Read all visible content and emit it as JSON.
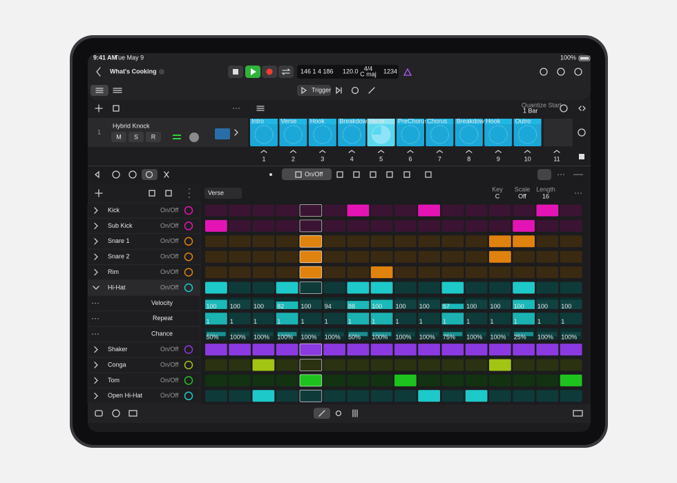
{
  "status_bar": {
    "time": "9:41 AM",
    "date": "Tue May 9",
    "battery": "100%"
  },
  "header": {
    "project_title": "What's Cooking",
    "lcd": {
      "position": "146 1 4 186",
      "tempo": "120.0",
      "signature": "4/4",
      "key": "C maj"
    },
    "count_in": "1234"
  },
  "toolbar": {
    "trigger": "Trigger"
  },
  "quantize": {
    "label": "Quantize Start",
    "value": "1 Bar"
  },
  "track": {
    "number": "1",
    "name": "Hybrid Knock",
    "buttons": [
      "M",
      "S",
      "R"
    ]
  },
  "cells": [
    "Intro",
    "Verse",
    "Hook",
    "Breakdown",
    "Verse",
    "PreChorus",
    "Chorus",
    "Breakdown",
    "Hook",
    "Outro"
  ],
  "selected_cell": 4,
  "scene_numbers": [
    "1",
    "2",
    "3",
    "4",
    "5",
    "6",
    "7",
    "8",
    "9",
    "10",
    "11"
  ],
  "step_toolbar": {
    "on_off": "On/Off"
  },
  "pattern": {
    "name": "Verse",
    "key_label": "Key",
    "key": "C",
    "scale_label": "Scale",
    "scale": "Off",
    "length_label": "Length",
    "length": "16",
    "playhead_step": 4
  },
  "rows": [
    {
      "name": "Kick",
      "toggle": "On/Off",
      "color": "#e414b4",
      "dim": "#3a1432",
      "steps": [
        0,
        0,
        0,
        0,
        0,
        0,
        1,
        0,
        0,
        1,
        0,
        0,
        0,
        0,
        1,
        0
      ]
    },
    {
      "name": "Sub Kick",
      "toggle": "On/Off",
      "color": "#e414b4",
      "dim": "#3a1432",
      "steps": [
        1,
        0,
        0,
        0,
        0,
        0,
        0,
        0,
        0,
        0,
        0,
        0,
        0,
        1,
        0,
        0
      ]
    },
    {
      "name": "Snare 1",
      "toggle": "On/Off",
      "color": "#e0820e",
      "dim": "#3a2a12",
      "steps": [
        0,
        0,
        0,
        0,
        1,
        0,
        0,
        0,
        0,
        0,
        0,
        0,
        1,
        1,
        0,
        0
      ]
    },
    {
      "name": "Snare 2",
      "toggle": "On/Off",
      "color": "#e0820e",
      "dim": "#3a2a12",
      "steps": [
        0,
        0,
        0,
        0,
        1,
        0,
        0,
        0,
        0,
        0,
        0,
        0,
        1,
        0,
        0,
        0
      ]
    },
    {
      "name": "Rim",
      "toggle": "On/Off",
      "color": "#e0820e",
      "dim": "#3a2a12",
      "steps": [
        0,
        0,
        0,
        0,
        1,
        0,
        0,
        1,
        0,
        0,
        0,
        0,
        0,
        0,
        0,
        0
      ]
    },
    {
      "name": "Hi-Hat",
      "toggle": "On/Off",
      "color": "#1ec9c9",
      "dim": "#0e3a3a",
      "steps": [
        1,
        0,
        0,
        1,
        0,
        0,
        1,
        1,
        0,
        0,
        1,
        0,
        0,
        1,
        0,
        0
      ]
    },
    {
      "name": "Shaker",
      "toggle": "On/Off",
      "color": "#8a3ae0",
      "dim": "#2e1650",
      "steps": [
        1,
        1,
        1,
        1,
        1,
        1,
        1,
        1,
        1,
        1,
        1,
        1,
        1,
        1,
        1,
        1
      ]
    },
    {
      "name": "Conga",
      "toggle": "On/Off",
      "color": "#a2c412",
      "dim": "#2a3212",
      "steps": [
        0,
        0,
        1,
        0,
        0,
        0,
        0,
        0,
        0,
        0,
        0,
        0,
        1,
        0,
        0,
        0
      ]
    },
    {
      "name": "Tom",
      "toggle": "On/Off",
      "color": "#1ec21e",
      "dim": "#123212",
      "steps": [
        0,
        0,
        0,
        0,
        1,
        0,
        0,
        0,
        1,
        0,
        0,
        0,
        0,
        0,
        0,
        1
      ]
    },
    {
      "name": "Open Hi-Hat",
      "toggle": "On/Off",
      "color": "#1ec9c9",
      "dim": "#0e3a3a",
      "steps": [
        0,
        0,
        1,
        0,
        0,
        0,
        0,
        0,
        0,
        1,
        0,
        1,
        0,
        0,
        0,
        0
      ]
    }
  ],
  "expanded_row": 5,
  "hihat_lanes": [
    {
      "label": "Velocity",
      "values": [
        100,
        100,
        100,
        82,
        100,
        94,
        88,
        100,
        100,
        100,
        57,
        100,
        100,
        100,
        100,
        100
      ]
    },
    {
      "label": "Repeat",
      "values": [
        1,
        1,
        1,
        1,
        1,
        1,
        1,
        1,
        1,
        1,
        1,
        1,
        1,
        1,
        1,
        1
      ]
    },
    {
      "label": "Chance",
      "values": [
        "50%",
        "100%",
        "100%",
        "100%",
        "100%",
        "100%",
        "50%",
        "100%",
        "100%",
        "100%",
        "75%",
        "100%",
        "100%",
        "25%",
        "100%",
        "100%"
      ]
    }
  ]
}
